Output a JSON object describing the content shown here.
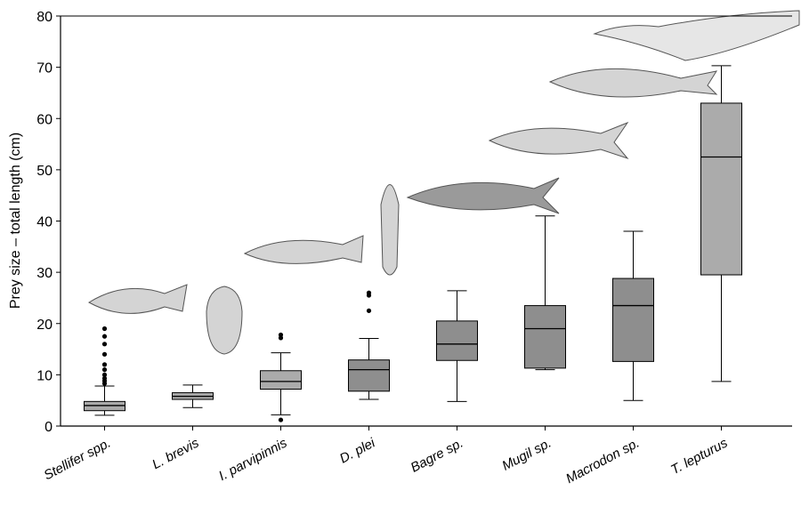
{
  "chart_data": {
    "type": "box",
    "y_label": "Prey size – total length (cm)",
    "categories": [
      "Stellifer spp.",
      "L. brevis",
      "I. parvipinnis",
      "D. plei",
      "Bagre sp.",
      "Mugil sp.",
      "Macrodon sp.",
      "T. lepturus"
    ],
    "boxes": [
      {
        "min": 2.1,
        "q1": 3,
        "median": 4,
        "q3": 4.8,
        "max": 7.8,
        "outliers": [
          8.3,
          8.8,
          9.3,
          10,
          11,
          12,
          14,
          16,
          17.5,
          19
        ]
      },
      {
        "min": 3.6,
        "q1": 5.2,
        "median": 5.8,
        "q3": 6.5,
        "max": 8,
        "outliers": []
      },
      {
        "min": 2.2,
        "q1": 7.2,
        "median": 8.7,
        "q3": 10.8,
        "max": 14.3,
        "outliers": [
          1.2,
          17.2,
          17.8
        ]
      },
      {
        "min": 5.2,
        "q1": 6.8,
        "median": 11,
        "q3": 12.9,
        "max": 17.1,
        "outliers": [
          22.5,
          25.5,
          26
        ]
      },
      {
        "min": 4.8,
        "q1": 12.8,
        "median": 16,
        "q3": 20.5,
        "max": 26.4,
        "outliers": []
      },
      {
        "min": 11,
        "q1": 11.3,
        "median": 19,
        "q3": 23.5,
        "max": 41,
        "outliers": []
      },
      {
        "min": 5,
        "q1": 12.6,
        "median": 23.5,
        "q3": 28.8,
        "max": 38,
        "outliers": []
      },
      {
        "min": 8.7,
        "q1": 29.5,
        "median": 52.5,
        "q3": 63,
        "max": 70.3,
        "outliers": []
      }
    ],
    "box_colors": [
      "#ababab",
      "#ababab",
      "#ababab",
      "#8e8e8e",
      "#8e8e8e",
      "#8e8e8e",
      "#8e8e8e",
      "#ababab"
    ],
    "ylim": [
      0,
      80
    ],
    "yticks": [
      0,
      10,
      20,
      30,
      40,
      50,
      60,
      70,
      80
    ]
  }
}
